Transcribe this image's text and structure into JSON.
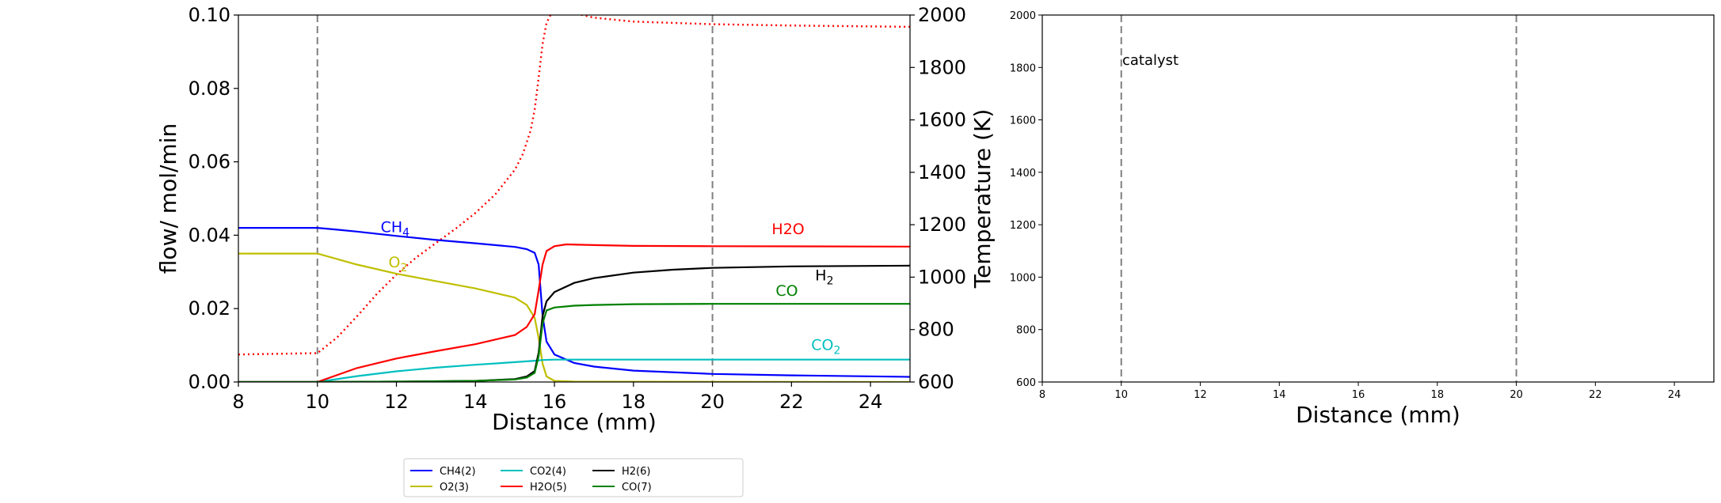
{
  "chart_data": [
    {
      "type": "line",
      "xlabel": "Distance (mm)",
      "ylabel": "flow/ mol/min",
      "y2label": "Temperature (K)",
      "xlim": [
        8,
        25
      ],
      "ylim": [
        0,
        0.1
      ],
      "y2lim": [
        600,
        2000
      ],
      "xticks": [
        "8",
        "10",
        "12",
        "14",
        "16",
        "18",
        "20",
        "22",
        "24"
      ],
      "yticks": [
        "0.00",
        "0.02",
        "0.04",
        "0.06",
        "0.08",
        "0.10"
      ],
      "y2ticks": [
        "600",
        "800",
        "1000",
        "1200",
        "1400",
        "1600",
        "1800",
        "2000"
      ],
      "vlines": [
        10,
        20
      ],
      "grid": false,
      "series": [
        {
          "name": "CH4(2)",
          "color": "#0000ff",
          "label": "CH4",
          "x": [
            8,
            10,
            10.5,
            11,
            12,
            13,
            14,
            15,
            15.3,
            15.5,
            15.6,
            15.7,
            15.8,
            16,
            16.5,
            17,
            18,
            20,
            22,
            25
          ],
          "y": [
            0.042,
            0.042,
            0.0415,
            0.041,
            0.0398,
            0.0387,
            0.0378,
            0.0368,
            0.0362,
            0.0352,
            0.032,
            0.018,
            0.011,
            0.0075,
            0.0052,
            0.0042,
            0.0031,
            0.0022,
            0.0018,
            0.0014
          ]
        },
        {
          "name": "O2(3)",
          "color": "#bfbf00",
          "label": "O2",
          "x": [
            8,
            10,
            10.5,
            11,
            12,
            13,
            14,
            15,
            15.3,
            15.5,
            15.6,
            15.7,
            15.8,
            16,
            16.5,
            25
          ],
          "y": [
            0.035,
            0.035,
            0.0335,
            0.032,
            0.0295,
            0.0275,
            0.0255,
            0.023,
            0.021,
            0.0175,
            0.012,
            0.005,
            0.0015,
            0.0003,
            0.0001,
            0.0
          ]
        },
        {
          "name": "CO2(4)",
          "color": "#00bfbf",
          "label": "CO2",
          "x": [
            8,
            10,
            11,
            12,
            13,
            14,
            15,
            15.5,
            15.7,
            16,
            18,
            20,
            25
          ],
          "y": [
            0.0,
            0.0,
            0.0016,
            0.0029,
            0.0039,
            0.0047,
            0.0054,
            0.0058,
            0.006,
            0.0061,
            0.0061,
            0.0061,
            0.0061
          ]
        },
        {
          "name": "H2O(5)",
          "color": "#ff0000",
          "label": "H2O",
          "x": [
            8,
            10,
            11,
            12,
            13,
            14,
            15,
            15.3,
            15.5,
            15.6,
            15.7,
            15.8,
            16,
            16.3,
            17,
            18,
            20,
            25
          ],
          "y": [
            0.0,
            0.0,
            0.0038,
            0.0064,
            0.0084,
            0.0103,
            0.0128,
            0.015,
            0.0185,
            0.025,
            0.032,
            0.0357,
            0.037,
            0.0375,
            0.0373,
            0.0371,
            0.037,
            0.0369
          ]
        },
        {
          "name": "H2(6)",
          "color": "#000000",
          "label": "H2",
          "x": [
            8,
            10,
            12,
            14,
            15,
            15.3,
            15.5,
            15.6,
            15.7,
            15.8,
            16,
            16.5,
            17,
            18,
            19,
            20,
            22,
            25
          ],
          "y": [
            0.0,
            0.0,
            0.0001,
            0.0003,
            0.0008,
            0.0015,
            0.003,
            0.008,
            0.018,
            0.022,
            0.0245,
            0.027,
            0.0283,
            0.0298,
            0.0306,
            0.0311,
            0.0315,
            0.0317
          ]
        },
        {
          "name": "CO(7)",
          "color": "#008000",
          "label": "CO",
          "x": [
            8,
            10,
            12,
            14,
            15,
            15.3,
            15.5,
            15.6,
            15.7,
            15.8,
            16,
            16.5,
            17,
            18,
            20,
            25
          ],
          "y": [
            0.0,
            0.0,
            0.0001,
            0.0003,
            0.0007,
            0.0012,
            0.0025,
            0.007,
            0.016,
            0.0195,
            0.0203,
            0.0208,
            0.021,
            0.0212,
            0.0213,
            0.0213
          ]
        }
      ],
      "temperature_series": {
        "color": "#ff0000",
        "style": "dotted",
        "x": [
          8,
          10,
          10.5,
          11,
          11.5,
          12,
          12.5,
          13,
          13.5,
          14,
          14.5,
          15,
          15.2,
          15.4,
          15.5,
          15.6,
          15.7,
          15.8,
          15.9,
          16,
          16.3,
          16.7,
          17,
          18,
          20,
          22,
          25
        ],
        "y": [
          705,
          710,
          770,
          850,
          935,
          1010,
          1075,
          1130,
          1185,
          1245,
          1315,
          1410,
          1470,
          1560,
          1640,
          1760,
          1890,
          1970,
          2000,
          2010,
          2010,
          2000,
          1990,
          1975,
          1965,
          1960,
          1955
        ]
      },
      "legend": {
        "placement": "below",
        "entries": [
          "CH4(2)",
          "O2(3)",
          "CO2(4)",
          "H2O(5)",
          "H2(6)",
          "CO(7)"
        ]
      }
    },
    {
      "type": "line",
      "xlabel": "Distance (mm)",
      "xlim": [
        8,
        25
      ],
      "ylim": [
        600,
        2000
      ],
      "xticks": [
        "8",
        "10",
        "12",
        "14",
        "16",
        "18",
        "20",
        "22",
        "24"
      ],
      "yticks": [
        "600",
        "800",
        "1000",
        "1200",
        "1400",
        "1600",
        "1800",
        "2000"
      ],
      "vlines": [
        10,
        20
      ],
      "annotation": "catalyst",
      "grid": false,
      "series": []
    }
  ]
}
